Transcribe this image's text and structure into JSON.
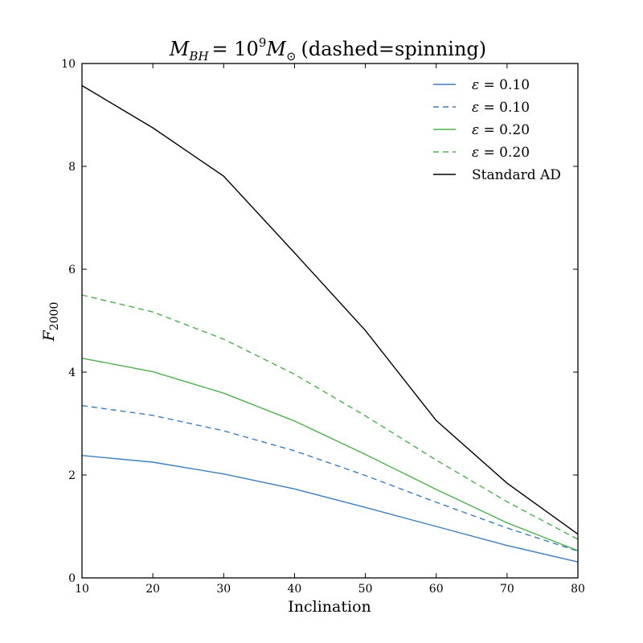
{
  "chart_data": {
    "type": "line",
    "title_main": "M",
    "title_main_sub": "BH",
    "title_eq": "= 10",
    "title_exp": "9",
    "title_m": "M",
    "title_m_sub": "⊙",
    "title_note": "(dashed=spinning)",
    "xlabel": "Inclination",
    "ylabel_main": "F",
    "ylabel_sub": "2000",
    "xlim": [
      10,
      80
    ],
    "ylim": [
      0,
      10
    ],
    "xticks": [
      "10",
      "20",
      "30",
      "40",
      "50",
      "60",
      "70",
      "80"
    ],
    "yticks": [
      "0",
      "2",
      "4",
      "6",
      "8",
      "10"
    ],
    "x": [
      10,
      20,
      30,
      40,
      50,
      60,
      70,
      80
    ],
    "legend_position": "top-right",
    "grid": false,
    "series": [
      {
        "name": "ε = 0.10",
        "color": "#3a7ebf",
        "dash": "solid",
        "values": [
          2.38,
          2.25,
          2.02,
          1.73,
          1.37,
          1.0,
          0.63,
          0.31
        ]
      },
      {
        "name": "ε = 0.10",
        "color": "#3a7ebf",
        "dash": "dashed",
        "values": [
          3.35,
          3.16,
          2.86,
          2.47,
          1.99,
          1.47,
          0.97,
          0.52
        ]
      },
      {
        "name": "ε = 0.20",
        "color": "#4cb04c",
        "dash": "solid",
        "values": [
          4.27,
          4.01,
          3.59,
          3.05,
          2.4,
          1.72,
          1.07,
          0.53
        ]
      },
      {
        "name": "ε = 0.20",
        "color": "#4cb04c",
        "dash": "dashed",
        "values": [
          5.5,
          5.17,
          4.64,
          3.96,
          3.15,
          2.29,
          1.48,
          0.75
        ]
      },
      {
        "name": "Standard AD",
        "color": "#000000",
        "dash": "solid",
        "values": [
          9.57,
          8.75,
          7.81,
          6.32,
          4.81,
          3.06,
          1.84,
          0.85
        ]
      }
    ]
  }
}
